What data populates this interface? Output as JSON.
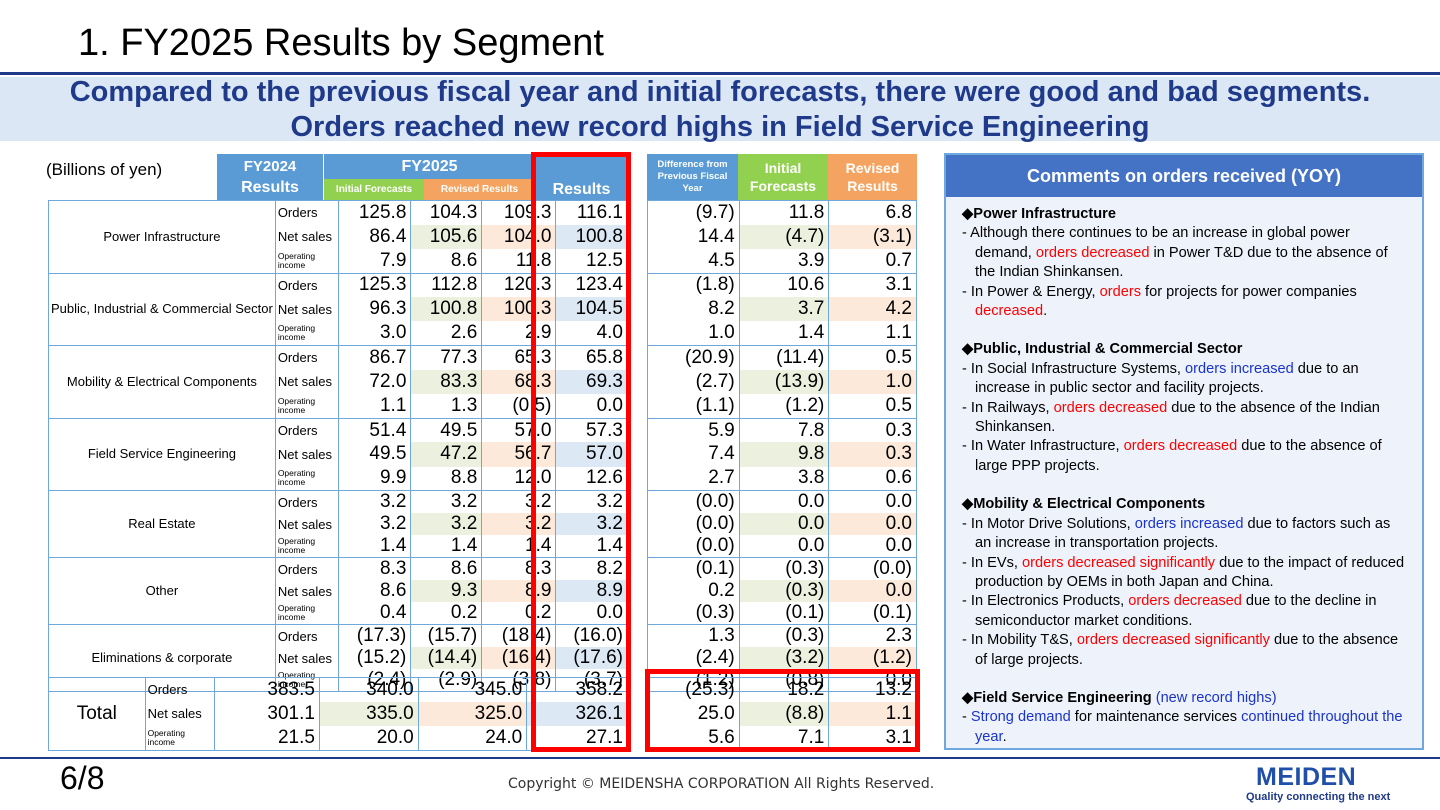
{
  "title": "1. FY2025 Results by Segment",
  "subtitle": "Compared to the previous fiscal year and initial forecasts, there were good and bad segments. Orders reached new record highs in Field Service Engineering",
  "units": "(Billions of yen)",
  "headers": {
    "fy2024": "FY2024",
    "fy2024_results": "Results",
    "fy2025": "FY2025",
    "initial_forecasts": "Initial Forecasts",
    "revised_results": "Revised Results",
    "results": "Results",
    "diff_prev": "Difference from Previous Fiscal Year",
    "initial": "Initial Forecasts",
    "revised": "Revised Results"
  },
  "segments": [
    {
      "name": "Power Infrastructure",
      "rows": [
        {
          "label": "Orders",
          "small": false,
          "vals": [
            "125.8",
            "104.3",
            "109.3",
            "116.1"
          ],
          "diffs": [
            "(9.7)",
            "11.8",
            "6.8"
          ]
        },
        {
          "label": "Net sales",
          "small": false,
          "vals": [
            "86.4",
            "105.6",
            "104.0",
            "100.8"
          ],
          "diffs": [
            "14.4",
            "(4.7)",
            "(3.1)"
          ]
        },
        {
          "label": "Operating income",
          "small": true,
          "vals": [
            "7.9",
            "8.6",
            "11.8",
            "12.5"
          ],
          "diffs": [
            "4.5",
            "3.9",
            "0.7"
          ]
        }
      ]
    },
    {
      "name": "Public, Industrial & Commercial Sector",
      "rows": [
        {
          "label": "Orders",
          "small": false,
          "vals": [
            "125.3",
            "112.8",
            "120.3",
            "123.4"
          ],
          "diffs": [
            "(1.8)",
            "10.6",
            "3.1"
          ]
        },
        {
          "label": "Net sales",
          "small": false,
          "vals": [
            "96.3",
            "100.8",
            "100.3",
            "104.5"
          ],
          "diffs": [
            "8.2",
            "3.7",
            "4.2"
          ]
        },
        {
          "label": "Operating income",
          "small": true,
          "vals": [
            "3.0",
            "2.6",
            "2.9",
            "4.0"
          ],
          "diffs": [
            "1.0",
            "1.4",
            "1.1"
          ]
        }
      ]
    },
    {
      "name": "Mobility & Electrical Components",
      "rows": [
        {
          "label": "Orders",
          "small": false,
          "vals": [
            "86.7",
            "77.3",
            "65.3",
            "65.8"
          ],
          "diffs": [
            "(20.9)",
            "(11.4)",
            "0.5"
          ]
        },
        {
          "label": "Net sales",
          "small": false,
          "vals": [
            "72.0",
            "83.3",
            "68.3",
            "69.3"
          ],
          "diffs": [
            "(2.7)",
            "(13.9)",
            "1.0"
          ]
        },
        {
          "label": "Operating income",
          "small": true,
          "vals": [
            "1.1",
            "1.3",
            "(0.5)",
            "0.0"
          ],
          "diffs": [
            "(1.1)",
            "(1.2)",
            "0.5"
          ]
        }
      ]
    },
    {
      "name": "Field Service Engineering",
      "rows": [
        {
          "label": "Orders",
          "small": false,
          "vals": [
            "51.4",
            "49.5",
            "57.0",
            "57.3"
          ],
          "diffs": [
            "5.9",
            "7.8",
            "0.3"
          ]
        },
        {
          "label": "Net sales",
          "small": false,
          "vals": [
            "49.5",
            "47.2",
            "56.7",
            "57.0"
          ],
          "diffs": [
            "7.4",
            "9.8",
            "0.3"
          ]
        },
        {
          "label": "Operating income",
          "small": true,
          "vals": [
            "9.9",
            "8.8",
            "12.0",
            "12.6"
          ],
          "diffs": [
            "2.7",
            "3.8",
            "0.6"
          ]
        }
      ]
    },
    {
      "name": "Real Estate",
      "rows": [
        {
          "label": "Orders",
          "small": false,
          "vals": [
            "3.2",
            "3.2",
            "3.2",
            "3.2"
          ],
          "diffs": [
            "(0.0)",
            "0.0",
            "0.0"
          ]
        },
        {
          "label": "Net sales",
          "small": false,
          "vals": [
            "3.2",
            "3.2",
            "3.2",
            "3.2"
          ],
          "diffs": [
            "(0.0)",
            "0.0",
            "0.0"
          ]
        },
        {
          "label": "Operating income",
          "small": true,
          "vals": [
            "1.4",
            "1.4",
            "1.4",
            "1.4"
          ],
          "diffs": [
            "(0.0)",
            "0.0",
            "0.0"
          ]
        }
      ]
    },
    {
      "name": "Other",
      "rows": [
        {
          "label": "Orders",
          "small": false,
          "vals": [
            "8.3",
            "8.6",
            "8.3",
            "8.2"
          ],
          "diffs": [
            "(0.1)",
            "(0.3)",
            "(0.0)"
          ]
        },
        {
          "label": "Net sales",
          "small": false,
          "vals": [
            "8.6",
            "9.3",
            "8.9",
            "8.9"
          ],
          "diffs": [
            "0.2",
            "(0.3)",
            "0.0"
          ]
        },
        {
          "label": "Operating income",
          "small": true,
          "vals": [
            "0.4",
            "0.2",
            "0.2",
            "0.0"
          ],
          "diffs": [
            "(0.3)",
            "(0.1)",
            "(0.1)"
          ]
        }
      ]
    },
    {
      "name": "Eliminations & corporate",
      "rows": [
        {
          "label": "Orders",
          "small": false,
          "vals": [
            "(17.3)",
            "(15.7)",
            "(18.4)",
            "(16.0)"
          ],
          "diffs": [
            "1.3",
            "(0.3)",
            "2.3"
          ]
        },
        {
          "label": "Net sales",
          "small": false,
          "vals": [
            "(15.2)",
            "(14.4)",
            "(16.4)",
            "(17.6)"
          ],
          "diffs": [
            "(2.4)",
            "(3.2)",
            "(1.2)"
          ]
        },
        {
          "label": "Operating income",
          "small": true,
          "vals": [
            "(2.4)",
            "(2.9)",
            "(3.8)",
            "(3.7)"
          ],
          "diffs": [
            "(1.2)",
            "(0.8)",
            "0.0"
          ]
        }
      ]
    }
  ],
  "total": {
    "name": "Total",
    "rows": [
      {
        "label": "Orders",
        "small": false,
        "vals": [
          "383.5",
          "340.0",
          "345.0",
          "358.2"
        ],
        "diffs": [
          "(25.3)",
          "18.2",
          "13.2"
        ]
      },
      {
        "label": "Net sales",
        "small": false,
        "vals": [
          "301.1",
          "335.0",
          "325.0",
          "326.1"
        ],
        "diffs": [
          "25.0",
          "(8.8)",
          "1.1"
        ]
      },
      {
        "label": "Operating income",
        "small": true,
        "vals": [
          "21.5",
          "20.0",
          "24.0",
          "27.1"
        ],
        "diffs": [
          "5.6",
          "7.1",
          "3.1"
        ]
      }
    ]
  },
  "comments": {
    "heading": "Comments on orders received (YOY)",
    "sections": [
      {
        "title": "◆Power Infrastructure",
        "title_extra": "",
        "lines": [
          [
            {
              "t": "- Although there continues to be an increase in global power demand, ",
              "c": ""
            },
            {
              "t": "orders decreased",
              "c": "red"
            },
            {
              "t": " in Power T&D due to the absence of the Indian Shinkansen.",
              "c": ""
            }
          ],
          [
            {
              "t": "- In Power & Energy, ",
              "c": ""
            },
            {
              "t": "orders",
              "c": "red"
            },
            {
              "t": " for projects for power companies ",
              "c": ""
            },
            {
              "t": "decreased",
              "c": "red"
            },
            {
              "t": ".",
              "c": ""
            }
          ]
        ]
      },
      {
        "title": "◆Public, Industrial & Commercial Sector",
        "title_extra": "",
        "lines": [
          [
            {
              "t": "- In Social Infrastructure Systems, ",
              "c": ""
            },
            {
              "t": "orders increased",
              "c": "bl"
            },
            {
              "t": " due to an increase in public sector and facility projects.",
              "c": ""
            }
          ],
          [
            {
              "t": "- In Railways, ",
              "c": ""
            },
            {
              "t": "orders decreased",
              "c": "red"
            },
            {
              "t": " due to the absence of the Indian Shinkansen.",
              "c": ""
            }
          ],
          [
            {
              "t": "- In Water Infrastructure, ",
              "c": ""
            },
            {
              "t": "orders decreased",
              "c": "red"
            },
            {
              "t": " due to the absence of large PPP projects.",
              "c": ""
            }
          ]
        ]
      },
      {
        "title": "◆Mobility & Electrical Components",
        "title_extra": "",
        "lines": [
          [
            {
              "t": "- In Motor Drive Solutions, ",
              "c": ""
            },
            {
              "t": "orders increased",
              "c": "bl"
            },
            {
              "t": " due to factors such as an increase in transportation projects.",
              "c": ""
            }
          ],
          [
            {
              "t": "- In EVs, ",
              "c": ""
            },
            {
              "t": "orders decreased significantly",
              "c": "red"
            },
            {
              "t": " due to the impact of reduced production by OEMs in both Japan and China.",
              "c": ""
            }
          ],
          [
            {
              "t": "- In Electronics Products, ",
              "c": ""
            },
            {
              "t": "orders decreased",
              "c": "red"
            },
            {
              "t": " due to the decline in semiconductor market conditions.",
              "c": ""
            }
          ],
          [
            {
              "t": "- In Mobility T&S, ",
              "c": ""
            },
            {
              "t": "orders decreased significantly",
              "c": "red"
            },
            {
              "t": " due to the absence of large projects.",
              "c": ""
            }
          ]
        ]
      },
      {
        "title": "◆Field Service Engineering",
        "title_extra": "(new record highs)",
        "lines": [
          [
            {
              "t": "- ",
              "c": ""
            },
            {
              "t": "Strong demand",
              "c": "bl"
            },
            {
              "t": " for maintenance services ",
              "c": ""
            },
            {
              "t": "continued throughout the year",
              "c": "bl"
            },
            {
              "t": ".",
              "c": ""
            }
          ]
        ]
      }
    ]
  },
  "footer": {
    "page": "6/8",
    "copyright": "Copyright © MEIDENSHA CORPORATION All Rights Reserved.",
    "logo": "MEIDEN",
    "tagline": "Quality connecting the next"
  }
}
